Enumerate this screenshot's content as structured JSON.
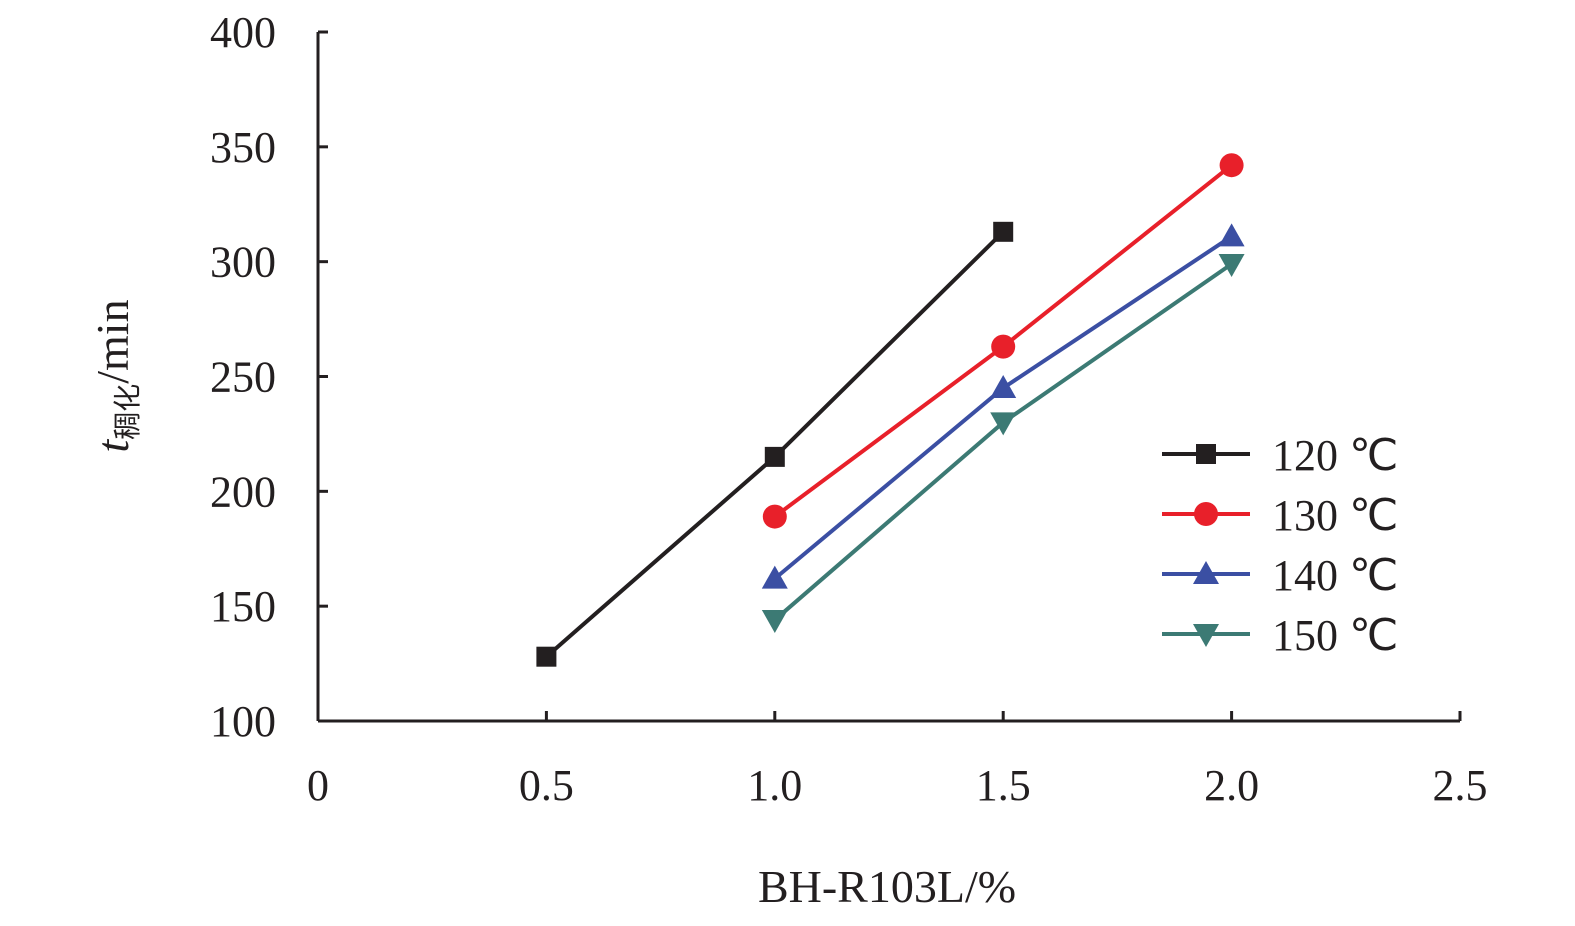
{
  "chart_data": {
    "type": "line",
    "xlabel": "BH-R103L/%",
    "ylabel": {
      "symbol": "t",
      "subscript": "稠化",
      "suffix": "/min"
    },
    "xlim": [
      0,
      2.5
    ],
    "ylim": [
      100,
      400
    ],
    "x_ticks": [
      "0",
      "0.5",
      "1.0",
      "1.5",
      "2.0",
      "2.5"
    ],
    "y_ticks": [
      "100",
      "150",
      "200",
      "250",
      "300",
      "350",
      "400"
    ],
    "grid": false,
    "legend_position": "right",
    "series": [
      {
        "name": "120 ℃",
        "color": "#231f20",
        "marker": "square",
        "x": [
          0.5,
          1.0,
          1.5
        ],
        "y": [
          128,
          215,
          313
        ]
      },
      {
        "name": "130 ℃",
        "color": "#e8202a",
        "marker": "circle",
        "x": [
          1.0,
          1.5,
          2.0
        ],
        "y": [
          189,
          263,
          342
        ]
      },
      {
        "name": "140 ℃",
        "color": "#3b4fa3",
        "marker": "triangle-up",
        "x": [
          1.0,
          1.5,
          2.0
        ],
        "y": [
          162,
          245,
          311
        ]
      },
      {
        "name": "150 ℃",
        "color": "#3c7a74",
        "marker": "triangle-down",
        "x": [
          1.0,
          1.5,
          2.0
        ],
        "y": [
          144,
          230,
          299
        ]
      }
    ]
  }
}
